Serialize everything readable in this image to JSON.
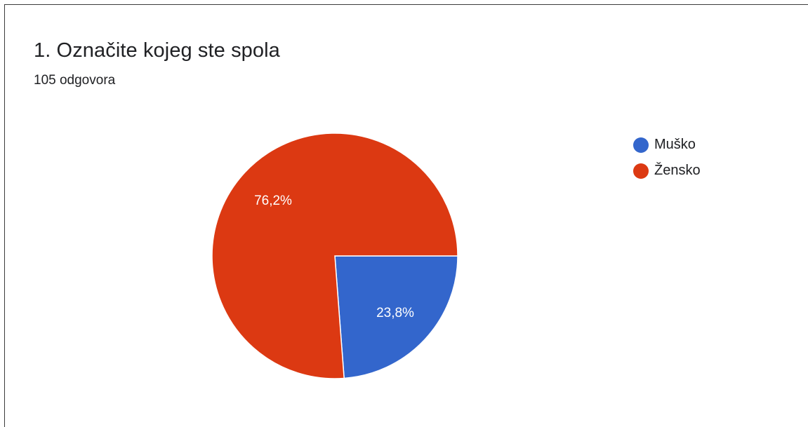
{
  "card": {
    "title": "1. Označite kojeg ste spola",
    "subtitle": "105 odgovora"
  },
  "chart_data": {
    "type": "pie",
    "categories": [
      "Muško",
      "Žensko"
    ],
    "values": [
      23.8,
      76.2
    ],
    "labels": [
      "23,8%",
      "76,2%"
    ],
    "colors": [
      "#3366cc",
      "#dc3912"
    ],
    "legend_position": "right"
  }
}
